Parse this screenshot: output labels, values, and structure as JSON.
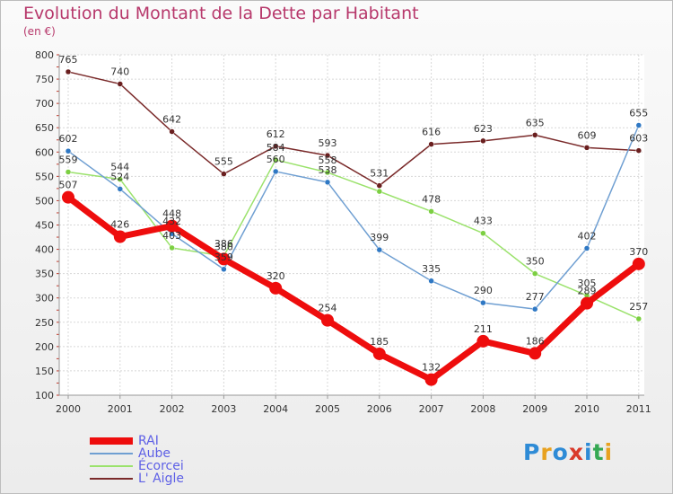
{
  "title": "Evolution du Montant de la Dette par Habitant",
  "subtitle": "(en €)",
  "logo": {
    "letters": [
      "P",
      "r",
      "o",
      "x",
      "i",
      "t",
      "i"
    ],
    "colors": [
      "#2e8bd6",
      "#e8a11f",
      "#2e8bd6",
      "#d93a2b",
      "#2e8bd6",
      "#35a853",
      "#e8a11f"
    ]
  },
  "chart_data": {
    "type": "line",
    "title": "Evolution du Montant de la Dette par Habitant",
    "ylabel": "(en €)",
    "xlabel": "",
    "categories": [
      "2000",
      "2001",
      "2002",
      "2003",
      "2004",
      "2005",
      "2006",
      "2007",
      "2008",
      "2009",
      "2010",
      "2011"
    ],
    "ylim": [
      100,
      800
    ],
    "yticks": [
      "100",
      "150",
      "200",
      "250",
      "300",
      "350",
      "400",
      "450",
      "500",
      "550",
      "600",
      "650",
      "700",
      "750",
      "800"
    ],
    "grid": true,
    "series": [
      {
        "name": "L' Aigle",
        "color": "#7a2a2a",
        "point_color": "#6a1f1f",
        "weight": "thin",
        "values": [
          765,
          740,
          642,
          555,
          612,
          593,
          531,
          616,
          623,
          635,
          609,
          603
        ],
        "labels": [
          "765",
          "740",
          "642",
          "555",
          "612",
          "593",
          "531",
          "616",
          "623",
          "635",
          "609",
          "603"
        ]
      },
      {
        "name": "Écorcei",
        "color": "#9be26c",
        "point_color": "#7ccf42",
        "weight": "thin",
        "values": [
          559,
          544,
          403,
          386,
          584,
          558,
          519,
          478,
          433,
          350,
          305,
          257
        ],
        "labels": [
          "559",
          "544",
          "403",
          "386",
          "584",
          "558",
          "",
          "478",
          "433",
          "350",
          "305",
          "257"
        ]
      },
      {
        "name": "Aube",
        "color": "#6f9fd2",
        "point_color": "#2f78c4",
        "weight": "thin",
        "values": [
          602,
          524,
          432,
          359,
          560,
          538,
          399,
          335,
          290,
          277,
          402,
          655
        ],
        "labels": [
          "602",
          "524",
          "432",
          "359",
          "560",
          "538",
          "399",
          "335",
          "290",
          "277",
          "402",
          "655"
        ]
      },
      {
        "name": "RAI",
        "color": "#ee0d0d",
        "point_color": "#ee0d0d",
        "weight": "thick",
        "values": [
          507,
          426,
          448,
          380,
          320,
          254,
          185,
          132,
          211,
          186,
          289,
          370
        ],
        "labels": [
          "507",
          "426",
          "448",
          "380",
          "320",
          "254",
          "185",
          "132",
          "211",
          "186",
          "289",
          "370"
        ]
      }
    ],
    "legend": {
      "position": "bottom-left",
      "items": [
        {
          "label": "RAI",
          "color": "#ee0d0d",
          "weight": "thick"
        },
        {
          "label": "Aube",
          "color": "#6f9fd2",
          "weight": "thin"
        },
        {
          "label": "Écorcei",
          "color": "#9be26c",
          "weight": "thin"
        },
        {
          "label": "L' Aigle",
          "color": "#7a2a2a",
          "weight": "thin"
        }
      ]
    }
  }
}
